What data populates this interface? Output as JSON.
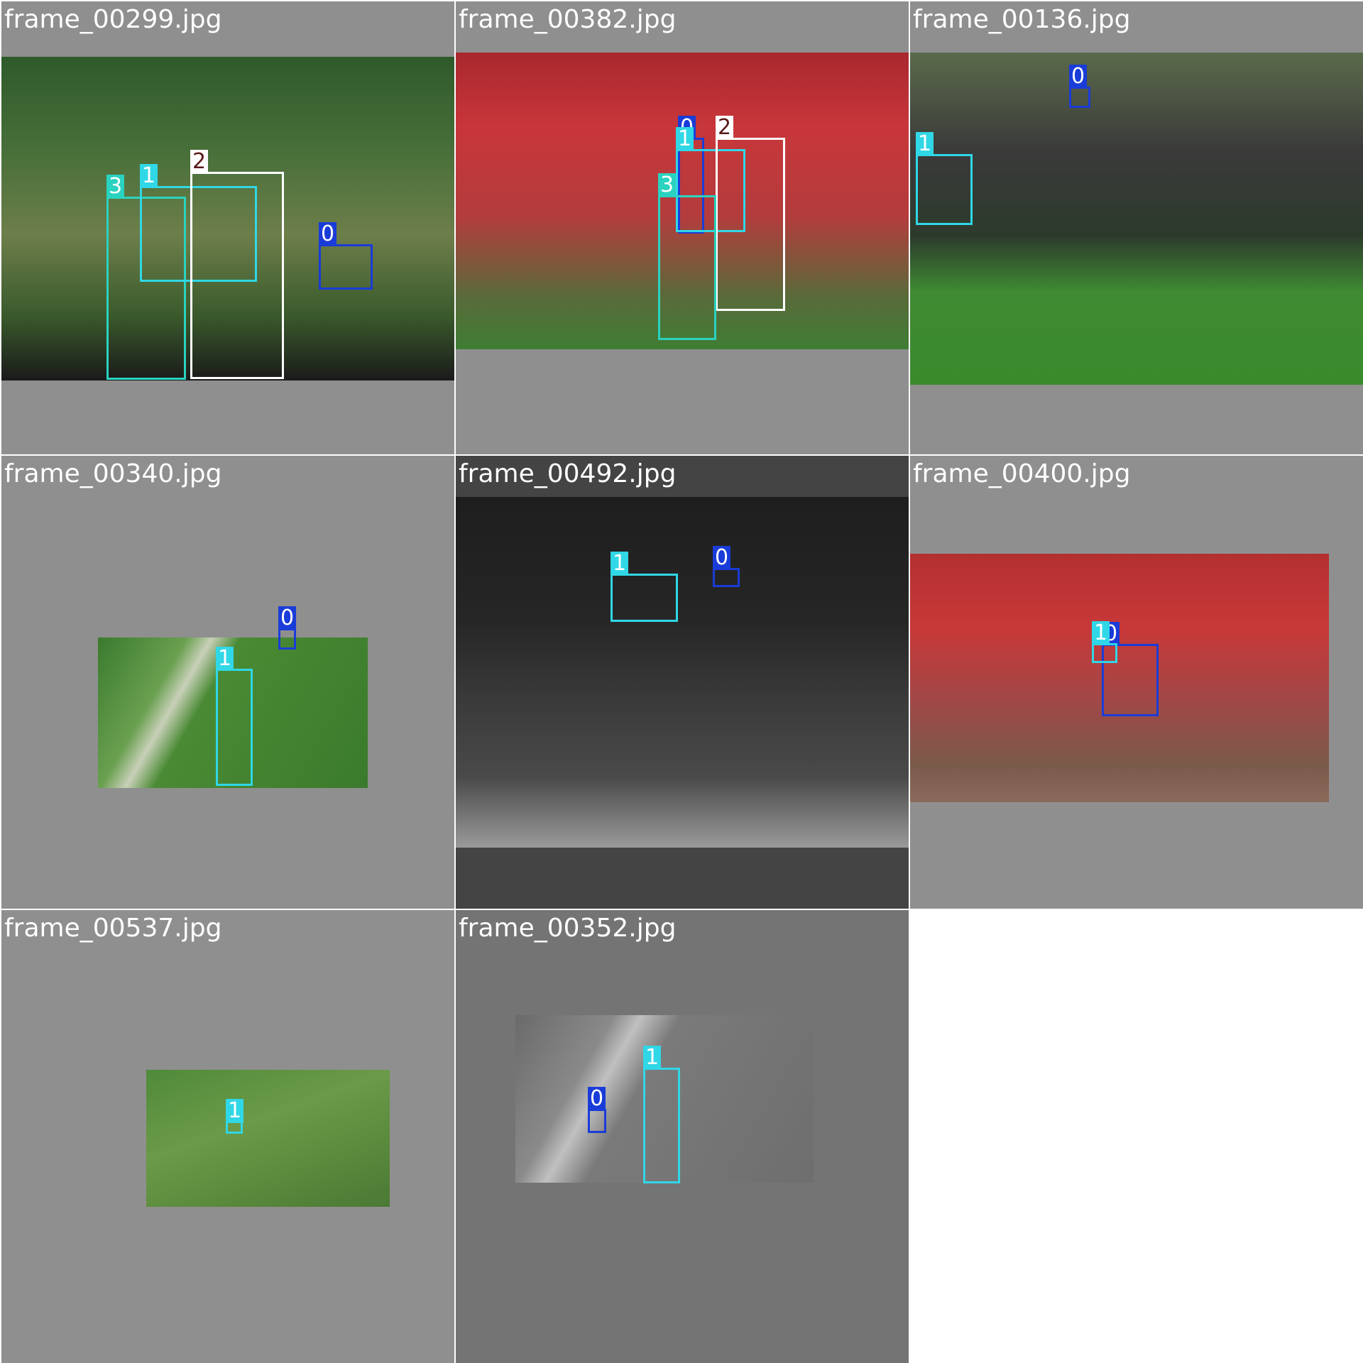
{
  "mosaic": {
    "tiles": [
      {
        "file": "frame_00299.jpg",
        "tone": "mid",
        "scene": "linear-gradient(180deg,#2e5a2a 0%,#49703a 30%,#6d7e4a 55%,#3a5a2c 80%,#1a1a1a 100%)",
        "detections": [
          {
            "label": "3",
            "color": "#2ad3c0"
          },
          {
            "label": "1",
            "color": "#30d7e6"
          },
          {
            "label": "2",
            "color": "#ffffff"
          },
          {
            "label": "0",
            "color": "#1a3cd8"
          }
        ]
      },
      {
        "file": "frame_00382.jpg",
        "tone": "mid",
        "scene": "linear-gradient(180deg,#a8282e 0%,#c8363a 25%,#b43c3c 55%,#5a6a3a 82%,#3f7d34 100%)",
        "detections": [
          {
            "label": "0",
            "color": "#1a3cd8"
          },
          {
            "label": "1",
            "color": "#30d7e6"
          },
          {
            "label": "2",
            "color": "#ffffff"
          },
          {
            "label": "3",
            "color": "#2ad3c0"
          }
        ]
      },
      {
        "file": "frame_00136.jpg",
        "tone": "mid",
        "scene": "linear-gradient(180deg,#5a6a4a 0%,#3a3a3a 30%,#2c3a2c 55%,#3f8a32 72%,#3a8a2c 100%)",
        "detections": [
          {
            "label": "0",
            "color": "#1a3cd8"
          },
          {
            "label": "1",
            "color": "#30d7e6"
          }
        ]
      },
      {
        "file": "frame_00340.jpg",
        "tone": "mid",
        "scene": "linear-gradient(120deg,#3a7a2e 0%,#6aa050 25%,#c8d0b8 32%,#4a8a34 40%,#3a7a2c 100%)",
        "detections": [
          {
            "label": "1",
            "color": "#30d7e6"
          },
          {
            "label": "0",
            "color": "#1a3cd8"
          }
        ]
      },
      {
        "file": "frame_00492.jpg",
        "tone": "darker",
        "scene": "linear-gradient(180deg,#1e1e1e 0%,#262626 35%,#3a3a3a 58%,#4a4a4a 80%,#9a9a9a 100%)",
        "detections": [
          {
            "label": "1",
            "color": "#30d7e6"
          },
          {
            "label": "0",
            "color": "#1a3cd8"
          }
        ]
      },
      {
        "file": "frame_00400.jpg",
        "tone": "mid",
        "scene": "linear-gradient(180deg,#b43030 0%,#c83838 30%,#a04848 60%,#7a5a4a 85%,#8a6a5a 100%)",
        "detections": [
          {
            "label": "0",
            "color": "#1a3cd8"
          },
          {
            "label": "1",
            "color": "#30d7e6"
          }
        ]
      },
      {
        "file": "frame_00537.jpg",
        "tone": "mid",
        "scene": "linear-gradient(160deg,#4f8a3a 0%,#6b9a48 40%,#5a8a3c 70%,#4a7a34 100%)",
        "detections": [
          {
            "label": "1",
            "color": "#30d7e6"
          }
        ]
      },
      {
        "file": "frame_00352.jpg",
        "tone": "dark",
        "scene": "linear-gradient(120deg,#6a6a6a 0%,#8a8a8a 25%,#c0c0c0 32%,#7a7a7a 42%,#6e6e6e 100%)",
        "detections": [
          {
            "label": "1",
            "color": "#30d7e6"
          },
          {
            "label": "0",
            "color": "#1a3cd8"
          }
        ]
      }
    ]
  }
}
